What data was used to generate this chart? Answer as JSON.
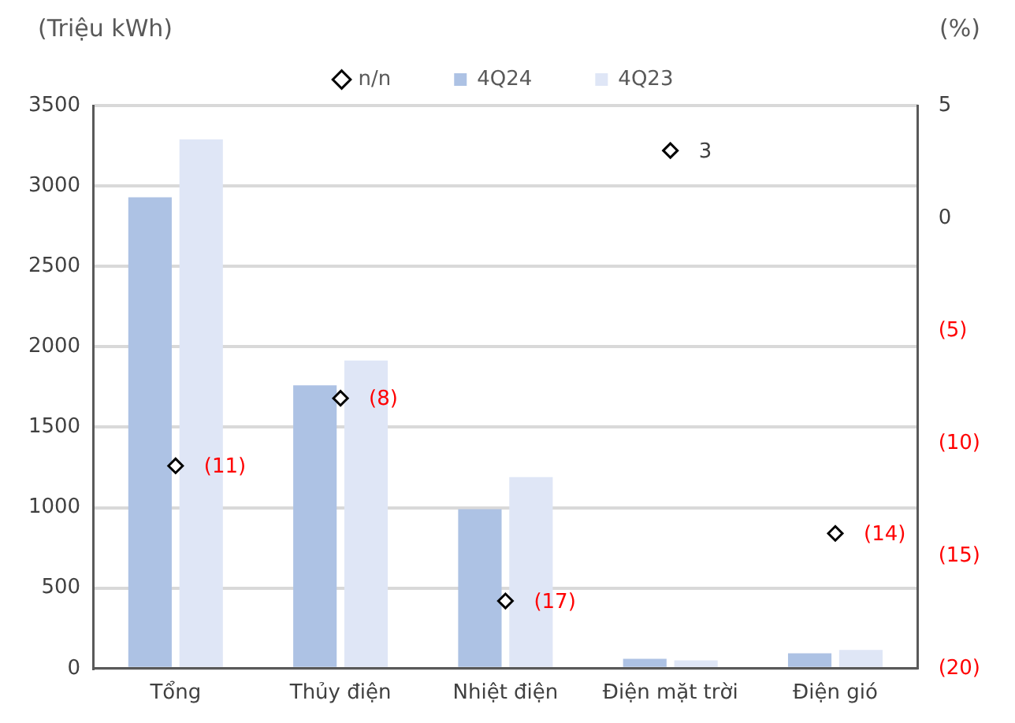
{
  "chart_data": {
    "type": "bar",
    "ylabel": "(Triệu kWh)",
    "y2label": "(%)",
    "categories": [
      "Tổng",
      "Thủy điện",
      "Nhiệt điện",
      "Điện mặt trời",
      "Điện gió"
    ],
    "series": [
      {
        "name": "4Q24",
        "color": "#adc2e4",
        "values": [
          2930,
          1760,
          990,
          60,
          95
        ]
      },
      {
        "name": "4Q23",
        "color": "#dfe6f6",
        "values": [
          3290,
          1915,
          1190,
          50,
          115
        ]
      },
      {
        "name": "n/n",
        "type": "scatter",
        "axis": "y2",
        "color": "#000000",
        "marker": "diamond",
        "values": [
          -11,
          -8,
          -17,
          3,
          -14
        ],
        "value_labels": [
          "(11)",
          "(8)",
          "(17)",
          "3",
          "(14)"
        ]
      }
    ],
    "ylim": [
      0,
      3500
    ],
    "yticks": [
      0,
      500,
      1000,
      1500,
      2000,
      2500,
      3000,
      3500
    ],
    "y2lim": [
      -20,
      5
    ],
    "y2ticks": [
      5,
      0,
      {
        "value": -5,
        "label": "(5)"
      },
      {
        "value": -10,
        "label": "(10)"
      },
      {
        "value": -15,
        "label": "(15)"
      },
      {
        "value": -20,
        "label": "(20)"
      }
    ],
    "grid": "y",
    "legend": "top"
  }
}
